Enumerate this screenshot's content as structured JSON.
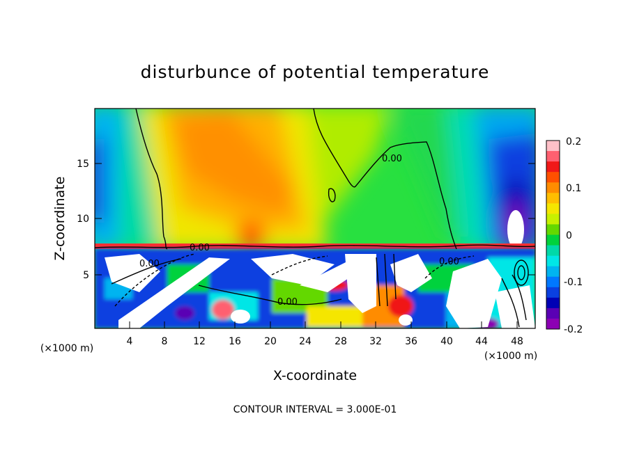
{
  "chart_data": {
    "type": "heatmap",
    "title": "disturbunce of potential temperature",
    "xlabel": "X-coordinate",
    "ylabel": "Z-coordinate",
    "x_unit": "(×1000 m)",
    "x_unit_right": "(×1000 m)",
    "xlim": [
      0,
      50
    ],
    "ylim": [
      0,
      20
    ],
    "x_ticks": [
      "4",
      "8",
      "12",
      "16",
      "20",
      "24",
      "28",
      "32",
      "36",
      "40",
      "44",
      "48"
    ],
    "y_ticks": [
      "5",
      "10",
      "15"
    ],
    "colorbar": {
      "range": [
        -0.2,
        0.2
      ],
      "ticks": [
        "0.2",
        "0.1",
        "0",
        "-0.1",
        "-0.2"
      ],
      "colors": [
        "#ffc0c8",
        "#ff6070",
        "#f01818",
        "#ff5000",
        "#ff8c00",
        "#ffbe00",
        "#f5e600",
        "#c8f000",
        "#64d800",
        "#00d23c",
        "#00d9a8",
        "#00e6e6",
        "#00b4f0",
        "#0078ff",
        "#0a40e0",
        "#0000b4",
        "#5a00b4",
        "#8c00b4"
      ]
    },
    "contour_labels": [
      "0.00",
      "0.00",
      "0.00",
      "0.00",
      "0.00"
    ],
    "footer": "CONTOUR INTERVAL = 3.000E-01"
  }
}
